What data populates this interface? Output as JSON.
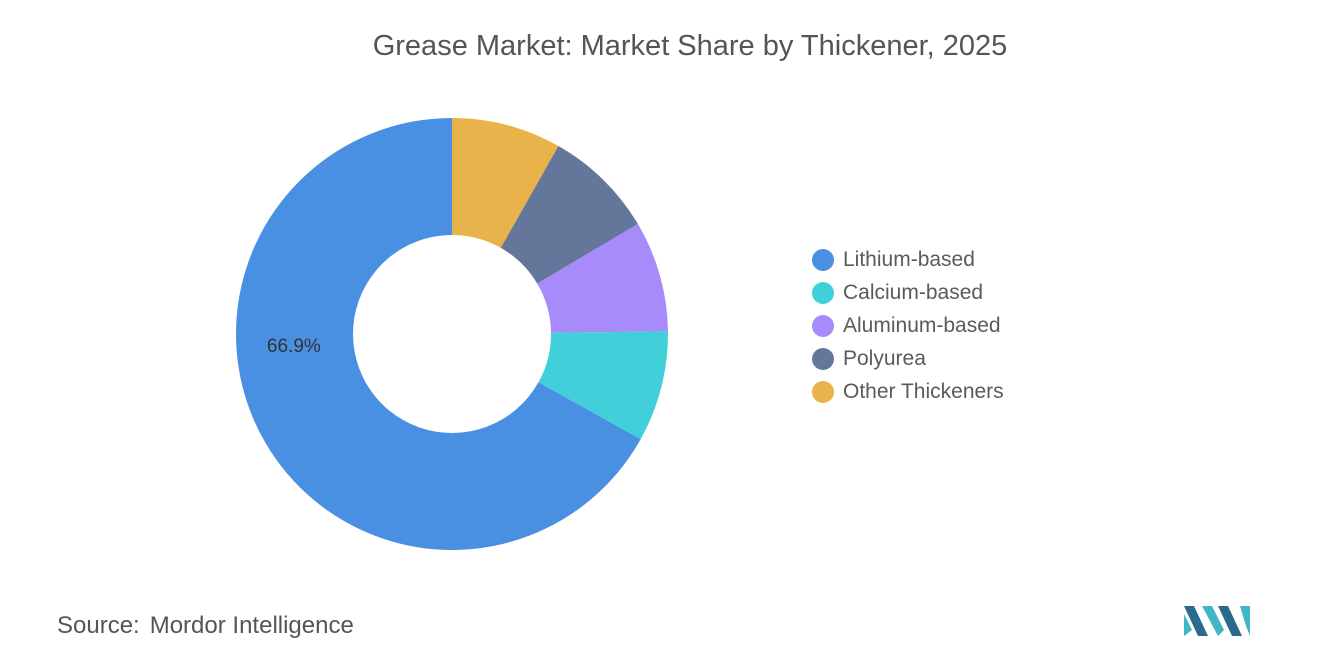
{
  "title": "Grease Market: Market Share by Thickener, 2025",
  "chart_data": {
    "type": "pie",
    "style": "donut",
    "categories": [
      "Lithium-based",
      "Calcium-based",
      "Aluminum-based",
      "Polyurea",
      "Other Thickeners"
    ],
    "values": [
      66.9,
      8.3,
      8.3,
      8.3,
      8.2
    ],
    "colors": [
      "#4a90e2",
      "#41d0da",
      "#a78bfa",
      "#64779a",
      "#e8b34a"
    ],
    "data_labels": [
      "66.9%",
      "",
      "",
      "",
      ""
    ],
    "legend_position": "right"
  },
  "legend": {
    "items": [
      {
        "label": "Lithium-based",
        "color": "#4a90e2"
      },
      {
        "label": "Calcium-based",
        "color": "#41d0da"
      },
      {
        "label": "Aluminum-based",
        "color": "#a78bfa"
      },
      {
        "label": "Polyurea",
        "color": "#64779a"
      },
      {
        "label": "Other Thickeners",
        "color": "#e8b34a"
      }
    ]
  },
  "source": {
    "label": "Source:",
    "value": "Mordor Intelligence"
  },
  "logo": {
    "icon": "mordor-intelligence-logo",
    "colors": [
      "#2c6a8c",
      "#3fb5c7"
    ]
  }
}
